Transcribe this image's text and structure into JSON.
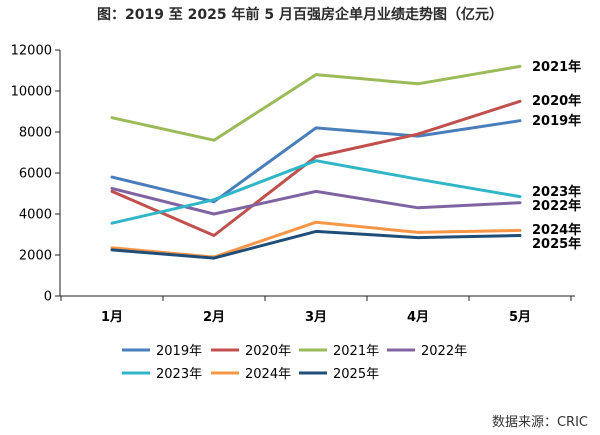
{
  "chart_data": {
    "type": "line",
    "title": "图：2019 至 2025 年前 5 月百强房企单月业绩走势图（亿元）",
    "categories": [
      "1月",
      "2月",
      "3月",
      "4月",
      "5月"
    ],
    "ylim": [
      0,
      12000
    ],
    "yticks": [
      0,
      2000,
      4000,
      6000,
      8000,
      10000,
      12000
    ],
    "grid": false,
    "legend_position": "bottom",
    "series": [
      {
        "name": "2019年",
        "color": "#4a7ebb",
        "values": [
          5800,
          4600,
          8200,
          7800,
          8550
        ]
      },
      {
        "name": "2020年",
        "color": "#c0504d",
        "values": [
          5100,
          2950,
          6800,
          7900,
          9500
        ]
      },
      {
        "name": "2021年",
        "color": "#9bbb59",
        "values": [
          8700,
          7600,
          10800,
          10350,
          11200
        ]
      },
      {
        "name": "2022年",
        "color": "#8064a2",
        "values": [
          5250,
          4000,
          5100,
          4300,
          4550
        ]
      },
      {
        "name": "2023年",
        "color": "#31b6c8",
        "values": [
          3550,
          4700,
          6600,
          5700,
          4850
        ]
      },
      {
        "name": "2024年",
        "color": "#f79646",
        "values": [
          2350,
          1900,
          3600,
          3100,
          3200
        ]
      },
      {
        "name": "2025年",
        "color": "#1f4e79",
        "values": [
          2250,
          1850,
          3150,
          2850,
          2950
        ]
      }
    ],
    "source": "数据来源：CRIC"
  }
}
